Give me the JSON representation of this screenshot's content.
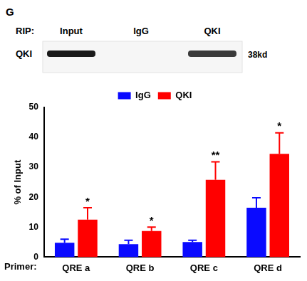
{
  "panel_label": "G",
  "blot": {
    "prefix": "RIP:",
    "lanes": [
      {
        "label": "Input",
        "band": true
      },
      {
        "label": "IgG",
        "band": false
      },
      {
        "label": "QKI",
        "band": true
      }
    ],
    "row_label": "QKI",
    "size_label": "38kd"
  },
  "chart_data": {
    "type": "bar",
    "categories": [
      "QRE a",
      "QRE b",
      "QRE c",
      "QRE d"
    ],
    "x_label": "Primer:",
    "y_label": "% of Input",
    "series": [
      {
        "name": "IgG",
        "color": "#0a0aff",
        "values": [
          4.8,
          4.3,
          5.0,
          16.5
        ],
        "errors": [
          1.2,
          1.3,
          0.6,
          3.3
        ]
      },
      {
        "name": "QKI",
        "color": "#ff0000",
        "values": [
          12.5,
          8.7,
          25.8,
          34.5
        ],
        "errors": [
          4.0,
          1.3,
          6.0,
          7.0
        ]
      }
    ],
    "annotations": [
      {
        "category": "QRE a",
        "series": "QKI",
        "text": "*"
      },
      {
        "category": "QRE b",
        "series": "QKI",
        "text": "*"
      },
      {
        "category": "QRE c",
        "series": "QKI",
        "text": "**"
      },
      {
        "category": "QRE d",
        "series": "QKI",
        "text": "*"
      }
    ],
    "ylim": [
      0,
      50
    ],
    "yticks": [
      0,
      10,
      20,
      30,
      40,
      50
    ],
    "grid": false,
    "legend": "top"
  }
}
